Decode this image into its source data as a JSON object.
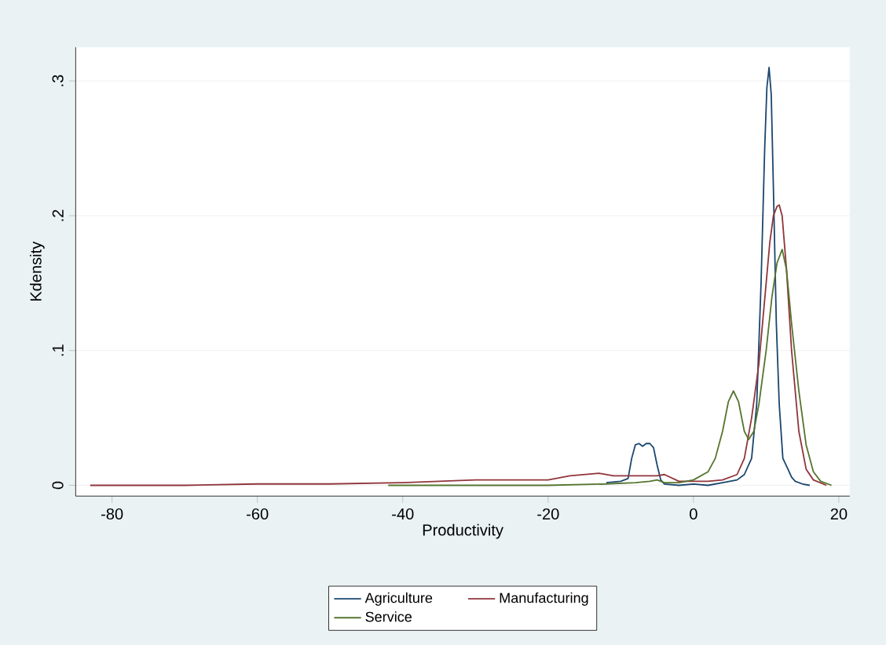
{
  "chart_data": {
    "type": "line",
    "xlabel": "Productivity",
    "ylabel": "Kdensity",
    "xlim": [
      -85,
      21.5
    ],
    "ylim": [
      -0.008,
      0.325
    ],
    "xticks": [
      -80,
      -60,
      -40,
      -20,
      0,
      20
    ],
    "yticks": [
      {
        "value": 0,
        "label": "0"
      },
      {
        "value": 0.1,
        "label": ".1"
      },
      {
        "value": 0.2,
        "label": ".2"
      },
      {
        "value": 0.3,
        "label": ".3"
      }
    ],
    "grid": "y",
    "legend": "bottom",
    "series": [
      {
        "name": "Agriculture",
        "color": "#1a476f",
        "x": [
          -12,
          -10,
          -9,
          -8.5,
          -8,
          -7.5,
          -7,
          -6.5,
          -6,
          -5.5,
          -5,
          -4.5,
          -4,
          -2,
          0,
          2,
          4,
          6,
          7,
          8,
          8.7,
          9.3,
          9.8,
          10.1,
          10.4,
          10.7,
          11,
          11.4,
          11.8,
          12.3,
          13,
          13.5,
          14,
          15,
          16
        ],
        "values": [
          0.002,
          0.003,
          0.005,
          0.02,
          0.03,
          0.031,
          0.029,
          0.031,
          0.031,
          0.028,
          0.015,
          0.004,
          0.001,
          0.0,
          0.001,
          0.0,
          0.002,
          0.004,
          0.008,
          0.02,
          0.06,
          0.15,
          0.25,
          0.295,
          0.31,
          0.29,
          0.22,
          0.12,
          0.06,
          0.02,
          0.012,
          0.006,
          0.003,
          0.001,
          0.0
        ]
      },
      {
        "name": "Manufacturing",
        "color": "#90353b",
        "x": [
          -83,
          -70,
          -60,
          -50,
          -40,
          -35,
          -30,
          -25,
          -20,
          -17,
          -15,
          -13,
          -11,
          -9,
          -7,
          -5,
          -4,
          -2,
          0,
          2,
          4,
          6,
          7,
          8,
          9,
          10,
          10.5,
          11,
          11.5,
          11.8,
          12.2,
          12.8,
          13.5,
          14.5,
          15.5,
          16.5,
          18.3
        ],
        "values": [
          0.0,
          0.0,
          0.001,
          0.001,
          0.002,
          0.003,
          0.004,
          0.004,
          0.004,
          0.007,
          0.008,
          0.009,
          0.007,
          0.007,
          0.007,
          0.007,
          0.008,
          0.003,
          0.003,
          0.003,
          0.004,
          0.008,
          0.02,
          0.05,
          0.09,
          0.15,
          0.18,
          0.2,
          0.207,
          0.208,
          0.2,
          0.16,
          0.1,
          0.04,
          0.012,
          0.004,
          0.0
        ]
      },
      {
        "name": "Service",
        "color": "#55752f",
        "x": [
          -42,
          -30,
          -20,
          -12,
          -8,
          -6,
          -5,
          -4,
          -2,
          0,
          2,
          3,
          4,
          4.8,
          5.5,
          6.2,
          7,
          7.6,
          8.3,
          9,
          10,
          10.8,
          11.5,
          12.2,
          12.8,
          13.5,
          14.5,
          15.5,
          16.5,
          17.5,
          19
        ],
        "values": [
          0.0,
          0.0,
          0.0,
          0.001,
          0.002,
          0.003,
          0.004,
          0.002,
          0.002,
          0.004,
          0.01,
          0.02,
          0.04,
          0.062,
          0.07,
          0.062,
          0.04,
          0.034,
          0.04,
          0.06,
          0.1,
          0.14,
          0.165,
          0.175,
          0.16,
          0.12,
          0.07,
          0.03,
          0.01,
          0.003,
          0.0
        ]
      }
    ]
  }
}
